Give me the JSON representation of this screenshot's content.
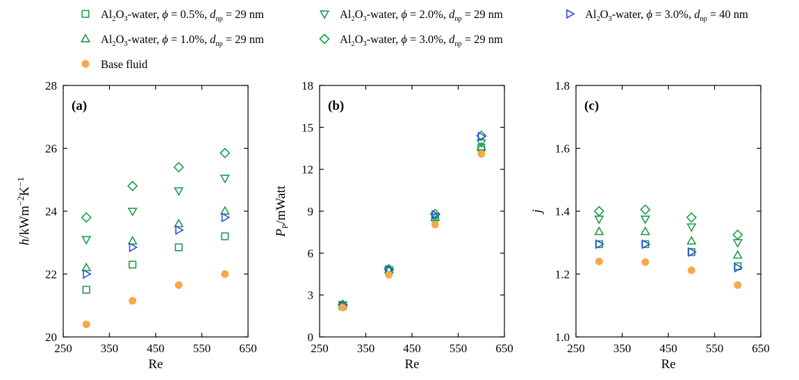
{
  "legend": {
    "entries": [
      {
        "key": "s1",
        "marker": "square",
        "color": "#1a9c4a",
        "parts": [
          [
            "n",
            "Al"
          ],
          [
            "sub",
            "2"
          ],
          [
            "n",
            "O"
          ],
          [
            "sub",
            "3"
          ],
          [
            "n",
            "-water, "
          ],
          [
            "i",
            "ϕ"
          ],
          [
            "n",
            " = 0.5%, "
          ],
          [
            "i",
            "d"
          ],
          [
            "sub",
            "np"
          ],
          [
            "n",
            " = 29 nm"
          ]
        ]
      },
      {
        "key": "s3",
        "marker": "triangle-down",
        "color": "#1a9c4a",
        "parts": [
          [
            "n",
            "Al"
          ],
          [
            "sub",
            "2"
          ],
          [
            "n",
            "O"
          ],
          [
            "sub",
            "3"
          ],
          [
            "n",
            "-water, "
          ],
          [
            "i",
            "ϕ"
          ],
          [
            "n",
            " = 2.0%, "
          ],
          [
            "i",
            "d"
          ],
          [
            "sub",
            "np"
          ],
          [
            "n",
            " = 29 nm"
          ]
        ]
      },
      {
        "key": "s5",
        "marker": "triangle-right",
        "color": "#2b4fe0",
        "parts": [
          [
            "n",
            "Al"
          ],
          [
            "sub",
            "2"
          ],
          [
            "n",
            "O"
          ],
          [
            "sub",
            "3"
          ],
          [
            "n",
            "-water, "
          ],
          [
            "i",
            "ϕ"
          ],
          [
            "n",
            " = 3.0%, "
          ],
          [
            "i",
            "d"
          ],
          [
            "sub",
            "np"
          ],
          [
            "n",
            " = 40 nm"
          ]
        ]
      },
      {
        "key": "s2",
        "marker": "triangle-up",
        "color": "#1a9c4a",
        "parts": [
          [
            "n",
            "Al"
          ],
          [
            "sub",
            "2"
          ],
          [
            "n",
            "O"
          ],
          [
            "sub",
            "3"
          ],
          [
            "n",
            "-water, "
          ],
          [
            "i",
            "ϕ"
          ],
          [
            "n",
            " = 1.0%, "
          ],
          [
            "i",
            "d"
          ],
          [
            "sub",
            "np"
          ],
          [
            "n",
            " = 29 nm"
          ]
        ]
      },
      {
        "key": "s4",
        "marker": "diamond",
        "color": "#1a9c4a",
        "parts": [
          [
            "n",
            "Al"
          ],
          [
            "sub",
            "2"
          ],
          [
            "n",
            "O"
          ],
          [
            "sub",
            "3"
          ],
          [
            "n",
            "-water, "
          ],
          [
            "i",
            "ϕ"
          ],
          [
            "n",
            " = 3.0%, "
          ],
          [
            "i",
            "d"
          ],
          [
            "sub",
            "np"
          ],
          [
            "n",
            " = 29 nm"
          ]
        ]
      },
      {
        "key": "base",
        "marker": "circle",
        "color": "#f5a94a",
        "parts": [
          [
            "n",
            "Base fluid"
          ]
        ]
      }
    ]
  },
  "chart_data": [
    {
      "type": "scatter",
      "panel_label": "(a)",
      "xlabel": "Re",
      "ylabel_parts": [
        [
          "i",
          "h"
        ],
        [
          "n",
          "/kWm"
        ],
        [
          "sup",
          "−2"
        ],
        [
          "n",
          "K"
        ],
        [
          "sup",
          "−1"
        ]
      ],
      "xlim": [
        250,
        650
      ],
      "xticks": [
        250,
        350,
        450,
        550,
        650
      ],
      "ylim": [
        20,
        28
      ],
      "yticks": [
        20,
        22,
        24,
        26,
        28
      ],
      "ytick_labels": [
        "20",
        "22",
        "24",
        "26",
        "28"
      ],
      "x": [
        300,
        400,
        500,
        600
      ],
      "series": [
        {
          "key": "s1",
          "values": [
            21.5,
            22.3,
            22.85,
            23.2
          ]
        },
        {
          "key": "s2",
          "values": [
            22.2,
            23.05,
            23.6,
            24.0
          ]
        },
        {
          "key": "s3",
          "values": [
            23.1,
            24.0,
            24.65,
            25.05
          ]
        },
        {
          "key": "s4",
          "values": [
            23.8,
            24.8,
            25.4,
            25.85
          ]
        },
        {
          "key": "s5",
          "values": [
            22.0,
            22.85,
            23.4,
            23.8
          ]
        },
        {
          "key": "base",
          "values": [
            20.4,
            21.15,
            21.65,
            22.0
          ]
        }
      ]
    },
    {
      "type": "scatter",
      "panel_label": "(b)",
      "xlabel": "Re",
      "ylabel_parts": [
        [
          "i",
          "P"
        ],
        [
          "sub",
          "P"
        ],
        [
          "n",
          "/mWatt"
        ]
      ],
      "xlim": [
        250,
        650
      ],
      "xticks": [
        250,
        350,
        450,
        550,
        650
      ],
      "ylim": [
        0,
        18
      ],
      "yticks": [
        0,
        3,
        6,
        9,
        12,
        15,
        18
      ],
      "ytick_labels": [
        "0",
        "3",
        "6",
        "9",
        "12",
        "15",
        "18"
      ],
      "x": [
        300,
        400,
        500,
        600
      ],
      "series": [
        {
          "key": "s1",
          "values": [
            2.2,
            4.75,
            8.55,
            13.55
          ]
        },
        {
          "key": "s2",
          "values": [
            2.3,
            4.8,
            8.55,
            13.6
          ]
        },
        {
          "key": "s3",
          "values": [
            2.3,
            4.8,
            8.6,
            13.9
          ]
        },
        {
          "key": "s4",
          "values": [
            2.3,
            4.85,
            8.8,
            14.4
          ]
        },
        {
          "key": "s5",
          "values": [
            2.25,
            4.8,
            8.75,
            14.35
          ]
        },
        {
          "key": "base",
          "values": [
            2.1,
            4.45,
            8.05,
            13.1
          ]
        }
      ]
    },
    {
      "type": "scatter",
      "panel_label": "(c)",
      "xlabel": "Re",
      "ylabel_parts": [
        [
          "i",
          "j"
        ]
      ],
      "xlim": [
        250,
        650
      ],
      "xticks": [
        250,
        350,
        450,
        550,
        650
      ],
      "ylim": [
        1.0,
        1.8
      ],
      "yticks": [
        1.0,
        1.2,
        1.4,
        1.6,
        1.8
      ],
      "ytick_labels": [
        "1.0",
        "1.2",
        "1.4",
        "1.6",
        "1.8"
      ],
      "x": [
        300,
        400,
        500,
        600
      ],
      "series": [
        {
          "key": "s1",
          "values": [
            1.295,
            1.295,
            1.27,
            1.225
          ]
        },
        {
          "key": "s2",
          "values": [
            1.335,
            1.335,
            1.305,
            1.26
          ]
        },
        {
          "key": "s3",
          "values": [
            1.375,
            1.375,
            1.35,
            1.3
          ]
        },
        {
          "key": "s4",
          "values": [
            1.4,
            1.405,
            1.38,
            1.325
          ]
        },
        {
          "key": "s5",
          "values": [
            1.295,
            1.295,
            1.27,
            1.22
          ]
        },
        {
          "key": "base",
          "values": [
            1.24,
            1.238,
            1.212,
            1.165
          ]
        }
      ]
    }
  ]
}
